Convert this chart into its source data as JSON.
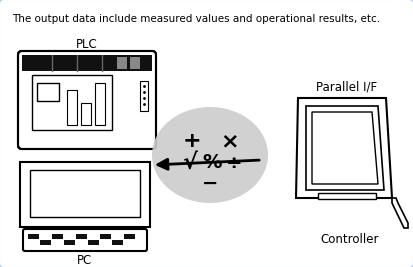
{
  "title_text": "The output data include measured values and operational results, etc.",
  "label_plc": "PLC",
  "label_pc": "PC",
  "label_parallel": "Parallel I/F",
  "label_controller": "Controller",
  "bg_color": "#ffffff",
  "border_color": "#aaccee",
  "ellipse_color": "#cccccc",
  "text_color": "#000000",
  "title_fontsize": 7.5,
  "label_fontsize": 8.5,
  "math_fontsize": 14,
  "fig_w": 4.13,
  "fig_h": 2.67,
  "dpi": 100
}
